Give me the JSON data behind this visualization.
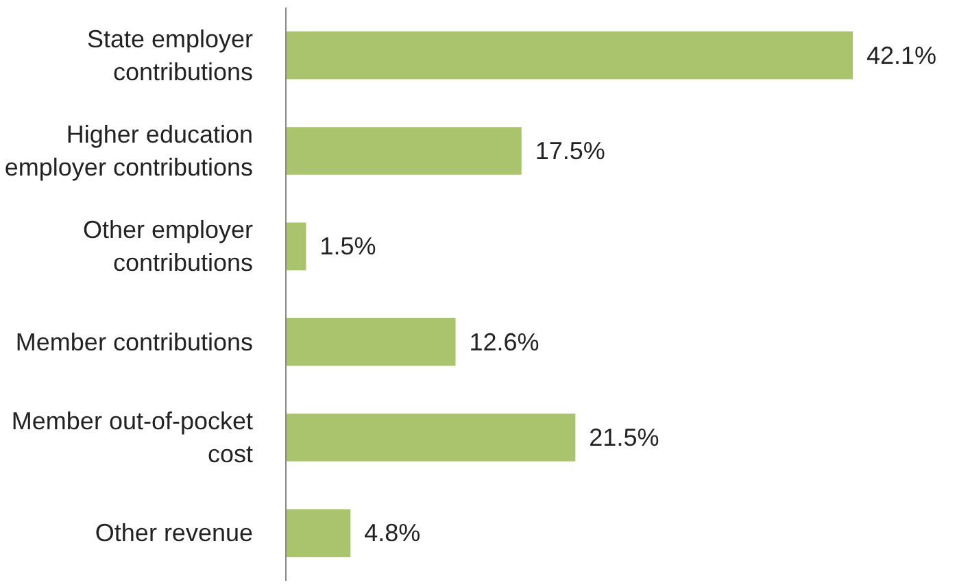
{
  "chart_data": {
    "type": "bar",
    "orientation": "horizontal",
    "categories": [
      "State employer\ncontributions",
      "Higher education\nemployer contributions",
      "Other employer\ncontributions",
      "Member contributions",
      "Member out-of-pocket\ncost",
      "Other revenue"
    ],
    "values": [
      42.1,
      17.5,
      1.5,
      12.6,
      21.5,
      4.8
    ],
    "value_labels": [
      "42.1%",
      "17.5%",
      "1.5%",
      "12.6%",
      "21.5%",
      "4.8%"
    ],
    "color": "#a9c46c"
  }
}
